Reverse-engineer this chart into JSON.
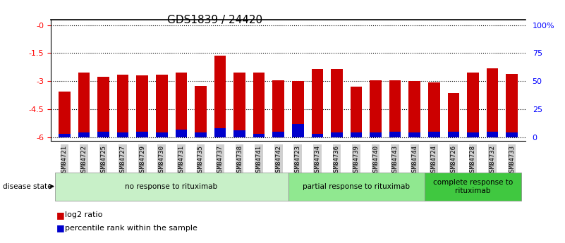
{
  "title": "GDS1839 / 24420",
  "samples": [
    "GSM84721",
    "GSM84722",
    "GSM84725",
    "GSM84727",
    "GSM84729",
    "GSM84730",
    "GSM84731",
    "GSM84735",
    "GSM84737",
    "GSM84738",
    "GSM84741",
    "GSM84742",
    "GSM84723",
    "GSM84734",
    "GSM84736",
    "GSM84739",
    "GSM84740",
    "GSM84743",
    "GSM84744",
    "GSM84724",
    "GSM84726",
    "GSM84728",
    "GSM84732",
    "GSM84733"
  ],
  "log2_values": [
    -3.55,
    -2.55,
    -2.75,
    -2.65,
    -2.7,
    -2.65,
    -2.55,
    -3.25,
    -1.65,
    -2.55,
    -2.55,
    -2.95,
    -3.0,
    -2.35,
    -2.35,
    -3.3,
    -2.95,
    -2.95,
    -3.0,
    -3.05,
    -3.65,
    -2.55,
    -2.3,
    -2.6
  ],
  "percentile_values": [
    3,
    4,
    5,
    4,
    5,
    4,
    7,
    4,
    8,
    6,
    3,
    5,
    12,
    3,
    4,
    4,
    4,
    5,
    4,
    5,
    5,
    4,
    5,
    4
  ],
  "groups": [
    {
      "label": "no response to rituximab",
      "start": 0,
      "end": 12,
      "color": "#c8f0c8"
    },
    {
      "label": "partial response to rituximab",
      "start": 12,
      "end": 19,
      "color": "#90e890"
    },
    {
      "label": "complete response to\nrituximab",
      "start": 19,
      "end": 24,
      "color": "#40c840"
    }
  ],
  "ylim": [
    -6.2,
    0.3
  ],
  "yticks_left": [
    0,
    -1.5,
    -3.0,
    -4.5,
    -6.0
  ],
  "ytick_labels_left": [
    "-0",
    "-1.5",
    "-3",
    "-4.5",
    "-6"
  ],
  "yticks_right_pct": [
    0,
    25,
    50,
    75,
    100
  ],
  "ytick_labels_right": [
    "0",
    "25",
    "50",
    "75",
    "100%"
  ],
  "bar_color": "#cc0000",
  "percentile_color": "#0000cc",
  "background_color": "#ffffff",
  "title_fontsize": 11,
  "disease_state_label": "disease state"
}
